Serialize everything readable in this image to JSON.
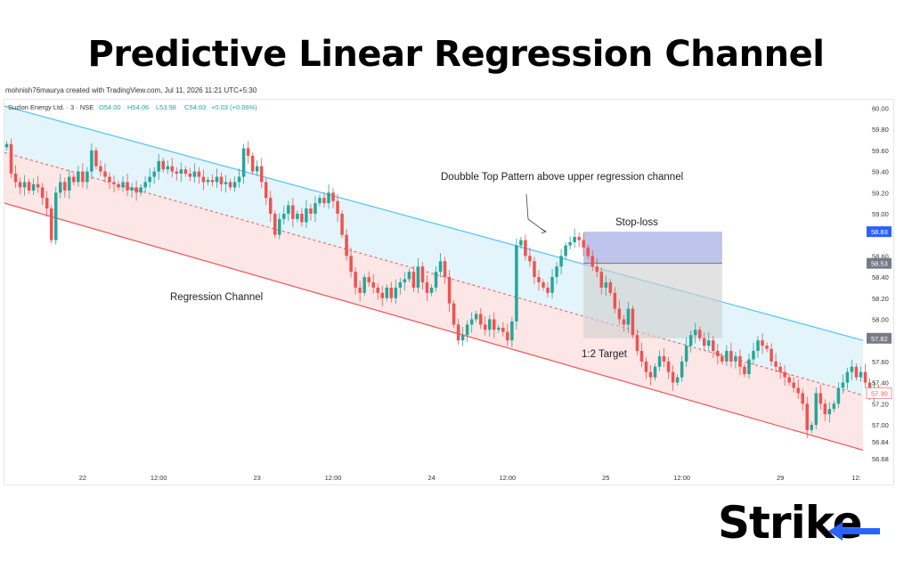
{
  "header": {
    "title": "Predictive Linear Regression Channel"
  },
  "credit": "mohnish76maurya created with TradingView.com, Jul 11, 2026 11:21 UTC+5:30",
  "legend": {
    "symbol": "Suzlon Energy Ltd. · 3 · NSE",
    "o": "O54.00",
    "h": "H54.06",
    "l": "L53.98",
    "c": "C54.03",
    "chg": "+0.03 (+0.06%)"
  },
  "logo": {
    "text": "Strike"
  },
  "colors": {
    "up": "#26a69a",
    "down": "#ef5350",
    "upper_line": "#4fc3f7",
    "lower_line": "#ef5350",
    "upper_fill": "#e3f4fb",
    "lower_fill": "#fde6e6",
    "stop_box": "#b3b9e8",
    "target_box": "#cfcfcf"
  },
  "chart_data": {
    "type": "candlestick",
    "symbol": "Suzlon Energy Ltd.",
    "ylim": [
      56.62,
      60.08
    ],
    "y_ticks": [
      "60.00",
      "59.80",
      "59.60",
      "59.40",
      "59.20",
      "59.00",
      "58.60",
      "58.40",
      "58.20",
      "58.00",
      "57.60",
      "57.40",
      "57.20",
      "57.00",
      "56.84",
      "56.68"
    ],
    "x_ticks": [
      {
        "label": "22",
        "index": 17
      },
      {
        "label": "12:00",
        "index": 34
      },
      {
        "label": "23",
        "index": 56
      },
      {
        "label": "12:00",
        "index": 73
      },
      {
        "label": "24",
        "index": 95
      },
      {
        "label": "12:00",
        "index": 112
      },
      {
        "label": "25",
        "index": 134
      },
      {
        "label": "12:00",
        "index": 151
      },
      {
        "label": "29",
        "index": 173
      },
      {
        "label": "12:",
        "index": 190
      }
    ],
    "price_labels": [
      {
        "value": "58.83",
        "price": 58.83,
        "bg": "#2962ff"
      },
      {
        "value": "58.53",
        "price": 58.53,
        "bg": "#787b86"
      },
      {
        "value": "57.82",
        "price": 57.82,
        "bg": "#787b86"
      },
      {
        "value": "57.30",
        "price": 57.3,
        "bg": "#ffffff"
      }
    ],
    "regression": {
      "n_bars": 192,
      "upper": [
        60.02,
        57.8
      ],
      "middle": [
        59.58,
        57.28
      ],
      "lower": [
        59.1,
        56.76
      ]
    },
    "closes": [
      59.66,
      59.38,
      59.3,
      59.25,
      59.3,
      59.22,
      59.28,
      59.25,
      59.15,
      59.05,
      58.75,
      59.2,
      59.3,
      59.22,
      59.35,
      59.3,
      59.4,
      59.3,
      59.4,
      59.6,
      59.45,
      59.4,
      59.35,
      59.3,
      59.28,
      59.25,
      59.3,
      59.22,
      59.25,
      59.2,
      59.25,
      59.3,
      59.35,
      59.4,
      59.5,
      59.42,
      59.45,
      59.4,
      59.38,
      59.42,
      59.38,
      59.35,
      59.4,
      59.35,
      59.3,
      59.32,
      59.3,
      59.35,
      59.28,
      59.3,
      59.25,
      59.3,
      59.35,
      59.62,
      59.55,
      59.4,
      59.45,
      59.3,
      59.15,
      59.0,
      58.8,
      58.95,
      59.0,
      59.08,
      58.95,
      59.0,
      58.92,
      59.05,
      59.0,
      59.1,
      59.15,
      59.1,
      59.2,
      59.12,
      59.0,
      58.8,
      58.6,
      58.45,
      58.3,
      58.25,
      58.4,
      58.35,
      58.3,
      58.25,
      58.2,
      58.3,
      58.2,
      58.3,
      58.35,
      58.38,
      58.45,
      58.3,
      58.5,
      58.35,
      58.25,
      58.3,
      58.45,
      58.55,
      58.4,
      58.15,
      57.95,
      57.8,
      57.85,
      57.95,
      58.0,
      58.05,
      57.95,
      57.9,
      58.0,
      57.9,
      57.92,
      57.88,
      57.8,
      57.98,
      58.7,
      58.75,
      58.6,
      58.55,
      58.4,
      58.35,
      58.3,
      58.25,
      58.4,
      58.5,
      58.6,
      58.7,
      58.73,
      58.78,
      58.75,
      58.68,
      58.6,
      58.5,
      58.45,
      58.3,
      58.35,
      58.25,
      58.1,
      58.0,
      57.95,
      58.1,
      57.85,
      57.7,
      57.6,
      57.5,
      57.45,
      57.55,
      57.65,
      57.6,
      57.5,
      57.4,
      57.45,
      57.6,
      57.75,
      57.85,
      57.9,
      57.82,
      57.75,
      57.8,
      57.7,
      57.65,
      57.6,
      57.7,
      57.6,
      57.65,
      57.55,
      57.48,
      57.62,
      57.7,
      57.8,
      57.75,
      57.72,
      57.6,
      57.55,
      57.5,
      57.45,
      57.4,
      57.35,
      57.3,
      57.2,
      56.95,
      57.0,
      57.3,
      57.2,
      57.1,
      57.15,
      57.2,
      57.35,
      57.4,
      57.5,
      57.55,
      57.45,
      57.5,
      57.4,
      57.3,
      57.35,
      57.32
    ],
    "annotations": [
      {
        "text": "Doubble Top Pattern above upper regression channel"
      },
      {
        "text": "Stop-loss"
      },
      {
        "text": "1:2 Target"
      },
      {
        "text": "Regression Channel"
      }
    ],
    "position_tool": {
      "start_index": 129,
      "end_index": 160,
      "stop": 58.83,
      "entry": 58.53,
      "target": 57.82
    }
  }
}
